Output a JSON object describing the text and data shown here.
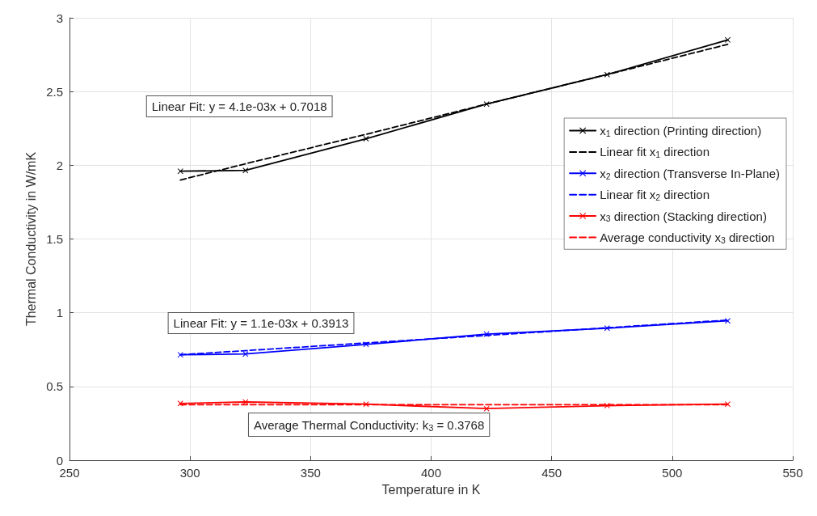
{
  "chart_data": {
    "type": "line",
    "xlabel": "Temperature in K",
    "ylabel": "Thermal Conductivity in W/mK",
    "x": [
      296,
      323,
      373,
      423,
      473,
      523
    ],
    "series": [
      {
        "name": "x$_{1}$ direction (Printing direction)",
        "color": "#000000",
        "values": [
          1.96,
          1.965,
          2.18,
          2.415,
          2.615,
          2.85
        ],
        "marker": "cross",
        "line_style": "solid"
      },
      {
        "name": "Linear fit x$_{1}$ direction",
        "color": "#000000",
        "values": [
          1.9,
          2.01,
          2.21,
          2.415,
          2.615,
          2.82
        ],
        "marker": "none",
        "line_style": "dashed"
      },
      {
        "name": "x$_{2}$ direction (Transverse In-Plane)",
        "color": "#0000ff",
        "values": [
          0.715,
          0.72,
          0.785,
          0.855,
          0.895,
          0.945
        ],
        "marker": "cross",
        "line_style": "solid"
      },
      {
        "name": "Linear fit x$_{2}$ direction",
        "color": "#0000ff",
        "values": [
          0.715,
          0.743,
          0.795,
          0.846,
          0.898,
          0.95
        ],
        "marker": "none",
        "line_style": "dashed"
      },
      {
        "name": "x$_{3}$ direction (Stacking direction)",
        "color": "#ff0000",
        "values": [
          0.385,
          0.395,
          0.38,
          0.35,
          0.37,
          0.38
        ],
        "marker": "cross",
        "line_style": "solid"
      },
      {
        "name": "Average conductivity x$_{3}$ direction",
        "color": "#ff0000",
        "values": [
          0.3768,
          0.3768,
          0.3768,
          0.3768,
          0.3768,
          0.3768
        ],
        "marker": "none",
        "line_style": "dashed"
      }
    ],
    "annotations": [
      "Linear Fit: y = 4.1e-03x + 0.7018",
      "Linear Fit: y = 1.1e-03x + 0.3913",
      "Average Thermal Conductivity: k$_{3}$ = 0.3768"
    ],
    "xlim": [
      250,
      550
    ],
    "xticks": [
      250,
      300,
      350,
      400,
      450,
      500,
      550
    ],
    "ylim": [
      0,
      3
    ],
    "yticks": [
      0,
      0.5,
      1,
      1.5,
      2,
      2.5,
      3
    ],
    "grid": true,
    "legend": "top right"
  }
}
